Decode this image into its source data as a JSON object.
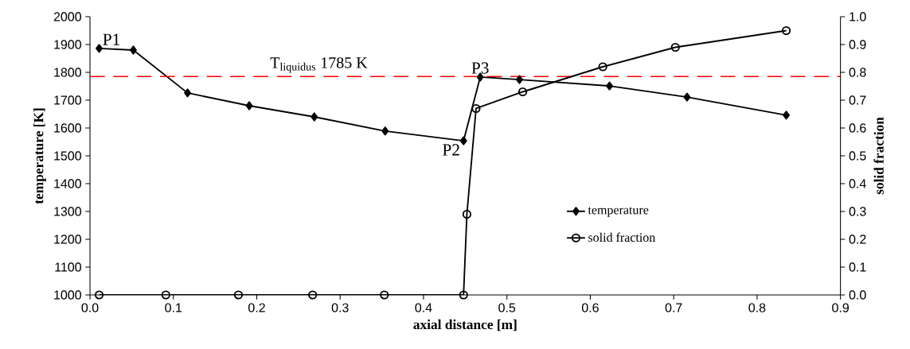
{
  "chart_data": {
    "type": "line",
    "xlabel": "axial distance [m]",
    "ylabel": "temperature [K]",
    "y2label": "solid fraction",
    "xlim": [
      0,
      0.9
    ],
    "xticks": [
      {
        "value": 0,
        "label": "0.0"
      },
      {
        "value": 0.1,
        "label": "0.1"
      },
      {
        "value": 0.2,
        "label": "0.2"
      },
      {
        "value": 0.3,
        "label": "0.3"
      },
      {
        "value": 0.4,
        "label": "0.4"
      },
      {
        "value": 0.5,
        "label": "0.5"
      },
      {
        "value": 0.6,
        "label": "0.6"
      },
      {
        "value": 0.7,
        "label": "0.7"
      },
      {
        "value": 0.8,
        "label": "0.8"
      },
      {
        "value": 0.9,
        "label": "0.9"
      }
    ],
    "ylim": [
      1000,
      2000
    ],
    "yticks": [
      1000,
      1100,
      1200,
      1300,
      1400,
      1500,
      1600,
      1700,
      1800,
      1900,
      2000
    ],
    "y2lim": [
      0,
      1
    ],
    "y2ticks": [
      {
        "value": 0,
        "label": "0.0"
      },
      {
        "value": 0.1,
        "label": "0.1"
      },
      {
        "value": 0.2,
        "label": "0.2"
      },
      {
        "value": 0.3,
        "label": "0.3"
      },
      {
        "value": 0.4,
        "label": "0.4"
      },
      {
        "value": 0.5,
        "label": "0.5"
      },
      {
        "value": 0.6,
        "label": "0.6"
      },
      {
        "value": 0.7,
        "label": "0.7"
      },
      {
        "value": 0.8,
        "label": "0.8"
      },
      {
        "value": 0.9,
        "label": "0.9"
      },
      {
        "value": 1,
        "label": "1.0"
      }
    ],
    "series": [
      {
        "name": "temperature",
        "color": "#000000",
        "marker": "diamond",
        "x": [
          0.011,
          0.052,
          0.117,
          0.191,
          0.269,
          0.354,
          0.448,
          0.468,
          0.515,
          0.623,
          0.716,
          0.835
        ],
        "values": [
          1886,
          1880,
          1726,
          1680,
          1640,
          1589,
          1554,
          1783,
          1774,
          1751,
          1711,
          1646
        ]
      },
      {
        "name": "solid fraction",
        "color": "#000000",
        "marker": "circle",
        "axis": "y2",
        "x": [
          0.011,
          0.091,
          0.178,
          0.267,
          0.353,
          0.448,
          0.452,
          0.463,
          0.519,
          0.615,
          0.702,
          0.835
        ],
        "values": [
          0,
          0,
          0,
          0,
          0,
          0,
          0.29,
          0.67,
          0.73,
          0.82,
          0.89,
          0.95
        ]
      }
    ],
    "ref_lines": [
      {
        "axis": "y",
        "value": 1785,
        "label": "T$_{liquidus}$ 1785 K",
        "color": "#ff0000",
        "line_style": "dashed"
      }
    ],
    "annotations": [
      {
        "text": "P1",
        "x": 0.011,
        "y": 1886
      },
      {
        "text": "P2",
        "x": 0.448,
        "y": 1554
      },
      {
        "text": "P3",
        "x": 0.468,
        "y": 1783
      }
    ],
    "legend": "bottom right",
    "grid": false,
    "line_style": "solid"
  }
}
